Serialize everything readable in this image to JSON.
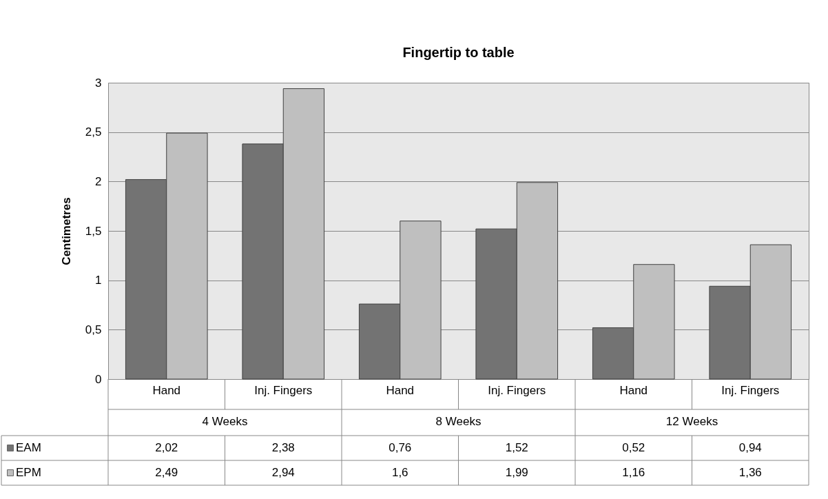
{
  "chart_data": {
    "type": "bar",
    "title": "Fingertip to table",
    "ylabel": "Centimetres",
    "categories": [
      "Hand",
      "Inj. Fingers",
      "Hand",
      "Inj. Fingers",
      "Hand",
      "Inj. Fingers"
    ],
    "annotations": [
      "4 Weeks",
      "8 Weeks",
      "12 Weeks"
    ],
    "series": [
      {
        "name": "EAM",
        "color": "#737373",
        "values": [
          2.02,
          2.38,
          0.76,
          1.52,
          0.52,
          0.94
        ],
        "value_labels": [
          "2,02",
          "2,38",
          "0,76",
          "1,52",
          "0,52",
          "0,94"
        ]
      },
      {
        "name": "EPM",
        "color": "#bfbfbf",
        "values": [
          2.49,
          2.94,
          1.6,
          1.99,
          1.16,
          1.36
        ],
        "value_labels": [
          "2,49",
          "2,94",
          "1,6",
          "1,99",
          "1,16",
          "1,36"
        ]
      }
    ],
    "ylim": [
      0,
      3
    ],
    "yticks": [
      0,
      {
        "value": 0.5,
        "label": "0,5"
      },
      1,
      {
        "value": 1.5,
        "label": "1,5"
      },
      2,
      {
        "value": 2.5,
        "label": "2,5"
      },
      3
    ],
    "grid": "y",
    "legend": "bottom left"
  }
}
